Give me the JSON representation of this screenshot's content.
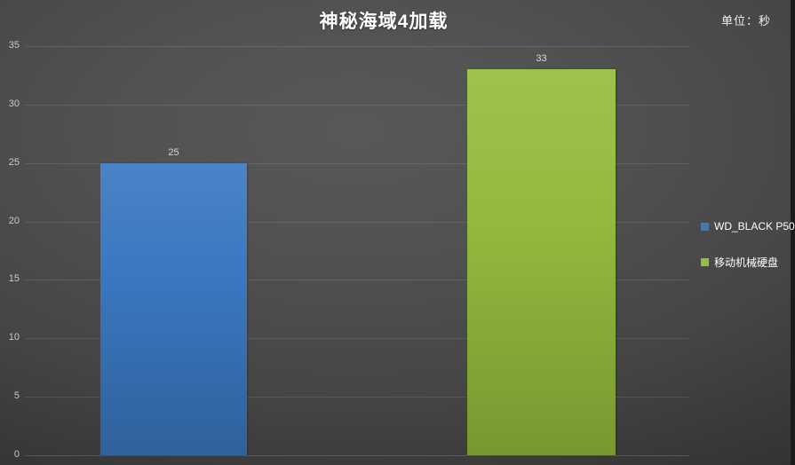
{
  "chart": {
    "title": "神秘海域4加载",
    "unit_label": "单位：秒",
    "y_ticks": [
      "35",
      "30",
      "25",
      "20",
      "15",
      "10",
      "5",
      "0"
    ],
    "series": [
      {
        "name": "WD_BLACK P50",
        "value": 25,
        "color": "#3b79c3"
      },
      {
        "name": "移动机械硬盘",
        "value": 33,
        "color": "#95bd3e"
      }
    ],
    "background_center": "#585858",
    "background_edge": "#232323"
  },
  "chart_data": {
    "type": "bar",
    "categories": [
      ""
    ],
    "series": [
      {
        "name": "WD_BLACK P50",
        "values": [
          25
        ]
      },
      {
        "name": "移动机械硬盘",
        "values": [
          33
        ]
      }
    ],
    "title": "神秘海域4加载",
    "xlabel": "",
    "ylabel": "",
    "unit": "单位：秒",
    "ylim": [
      0,
      35
    ],
    "ytick_interval": 5,
    "grid": true,
    "data_labels": true,
    "legend_position": "right"
  }
}
